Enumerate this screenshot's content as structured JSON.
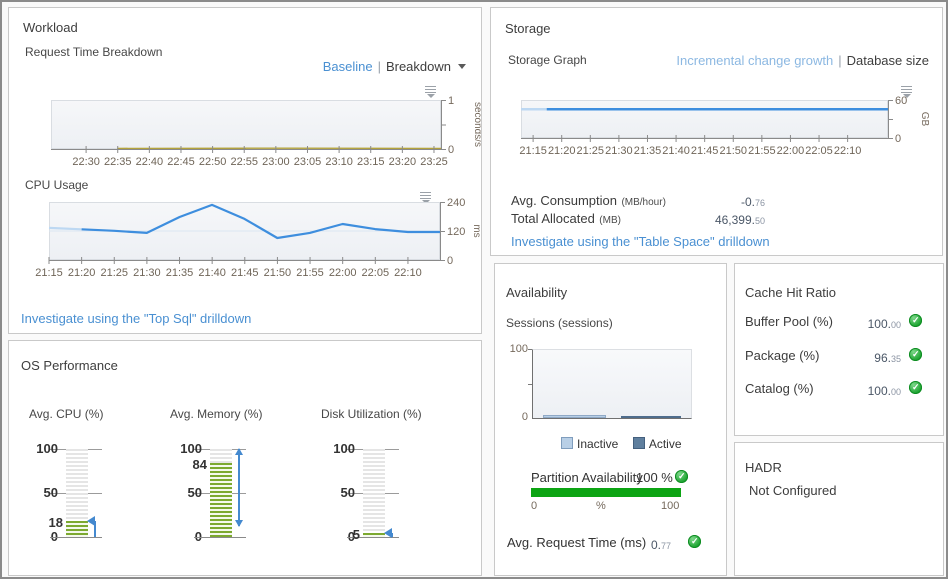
{
  "colors": {
    "line_blue": "#3e8ede",
    "line_light_blue": "#bdd8f2",
    "line_olive": "#b3a33c",
    "line_dark": "#8a8a7a",
    "gauge_green": "#7ca930",
    "marker_blue": "#4489cf",
    "partition_green": "#0ca413",
    "inactive_fill": "#b8cfe6",
    "inactive_border": "#8fa9c6",
    "active_fill": "#5f7f9e",
    "active_border": "#4f6d8c",
    "link_blue": "#4a90d2",
    "link_light_blue": "#8cb8e2"
  },
  "workload": {
    "title": "Workload",
    "request_chart": {
      "label": "Request Time Breakdown",
      "baseline_link": "Baseline",
      "separator": "|",
      "breakdown_label": "Breakdown",
      "type": "line",
      "x_labels": [
        "22:30",
        "22:35",
        "22:40",
        "22:45",
        "22:50",
        "22:55",
        "23:00",
        "23:05",
        "23:10",
        "23:15",
        "23:20",
        "23:25"
      ],
      "y_max": 1,
      "y_ticks": [
        {
          "pos": 0,
          "label": "1"
        },
        {
          "pos": 0.5,
          "label": ""
        },
        {
          "pos": 1,
          "label": "0"
        }
      ],
      "unit": "seconds/s",
      "series": [
        {
          "name": "request-time-dark",
          "color": "#8a8a7a",
          "width": 1,
          "points": [
            [
              0.17,
              0.006
            ],
            [
              0.5,
              0.006
            ]
          ]
        },
        {
          "name": "request-time",
          "color": "#b3a33c",
          "width": 1.4,
          "points": [
            [
              0.17,
              0.012
            ],
            [
              0.6,
              0.016
            ],
            [
              1,
              0.012
            ]
          ]
        }
      ]
    },
    "cpu_chart": {
      "label": "CPU Usage",
      "type": "line",
      "x_labels": [
        "21:15",
        "21:20",
        "21:25",
        "21:30",
        "21:35",
        "21:40",
        "21:45",
        "21:50",
        "21:55",
        "22:00",
        "22:05",
        "22:10"
      ],
      "y_max": 240,
      "y_ticks": [
        {
          "pos": 0,
          "label": "240"
        },
        {
          "pos": 0.5,
          "label": "120"
        },
        {
          "pos": 1,
          "label": "0"
        }
      ],
      "unit": "ms",
      "grid": [
        0.5
      ],
      "series": [
        {
          "name": "baseline",
          "color": "#bdd8f2",
          "width": 2.2,
          "points": [
            [
              0,
              133
            ],
            [
              0.0835,
              127
            ]
          ]
        },
        {
          "name": "cpu-ms",
          "color": "#3e8ede",
          "width": 2.2,
          "points": [
            [
              0.0835,
              127
            ],
            [
              0.167,
              121
            ],
            [
              0.25,
              112
            ],
            [
              0.334,
              178
            ],
            [
              0.417,
              228
            ],
            [
              0.5,
              170
            ],
            [
              0.584,
              91
            ],
            [
              0.667,
              112
            ],
            [
              0.751,
              149
            ],
            [
              0.834,
              128
            ],
            [
              0.918,
              116
            ],
            [
              1,
              116
            ]
          ]
        }
      ]
    },
    "drilldown": "Investigate using the \"Top Sql\" drilldown"
  },
  "storage": {
    "title": "Storage",
    "graph_label": "Storage Graph",
    "incremental_link": "Incremental change growth",
    "separator": "|",
    "database_link": "Database size",
    "chart": {
      "type": "line",
      "x_labels": [
        "21:15",
        "21:20",
        "21:25",
        "21:30",
        "21:35",
        "21:40",
        "21:45",
        "21:50",
        "21:55",
        "22:00",
        "22:05",
        "22:10"
      ],
      "y_max": 60,
      "y_ticks": [
        {
          "pos": 0,
          "label": "60"
        },
        {
          "pos": 0.5,
          "label": ""
        },
        {
          "pos": 1,
          "label": "0"
        }
      ],
      "unit": "GB",
      "series": [
        {
          "name": "baseline",
          "color": "#bdd8f2",
          "width": 2.5,
          "points": [
            [
              0,
              45.3
            ],
            [
              0.07,
              45.3
            ]
          ]
        },
        {
          "name": "database-size-gb",
          "color": "#3e8ede",
          "width": 2.5,
          "points": [
            [
              0.07,
              45.3
            ],
            [
              1,
              45.3
            ]
          ]
        }
      ]
    },
    "rows": [
      {
        "label": "Avg. Consumption",
        "unit": "(MB/hour)",
        "int": "-0.",
        "dec": "76"
      },
      {
        "label": "Total Allocated",
        "unit": "(MB)",
        "int": "46,399.",
        "dec": "50"
      }
    ],
    "drilldown": "Investigate using the \"Table Space\" drilldown"
  },
  "os_performance": {
    "title": "OS Performance",
    "gauges": [
      {
        "label": "Avg. CPU (%)",
        "ticks": [
          "100",
          "50",
          "0"
        ],
        "value": 18,
        "value_label": "18",
        "marker": {
          "type": "value-arrow",
          "from": 0,
          "to": 18
        }
      },
      {
        "label": "Avg. Memory (%)",
        "ticks": [
          "100",
          "50",
          "0"
        ],
        "value": 84,
        "value_label": "84",
        "marker": {
          "type": "range",
          "from": 13,
          "to": 100
        }
      },
      {
        "label": "Disk Utilization (%)",
        "ticks": [
          "100",
          "50",
          "0"
        ],
        "value": 5,
        "value_label": "5",
        "marker": {
          "type": "value-arrow",
          "from": 0,
          "to": 5
        }
      }
    ]
  },
  "availability": {
    "title": "Availability",
    "sessions_label": "Sessions (sessions)",
    "sessions_chart": {
      "type": "bar",
      "y_max": 100,
      "y_tick_labels": [
        "100",
        "0"
      ],
      "bars": [
        {
          "name": "inactive",
          "value": 4
        },
        {
          "name": "active",
          "value": 3
        }
      ]
    },
    "legend": [
      {
        "label": "Inactive"
      },
      {
        "label": "Active"
      }
    ],
    "partition": {
      "label": "Partition Availability",
      "value": "100 %",
      "bar_value": 100,
      "scale": [
        "0",
        "%",
        "100"
      ]
    },
    "request_time": {
      "label": "Avg. Request Time (ms)",
      "int": "0.",
      "dec": "77"
    }
  },
  "cache": {
    "title": "Cache Hit Ratio",
    "rows": [
      {
        "label": "Buffer Pool (%)",
        "int": "100.",
        "dec": "00"
      },
      {
        "label": "Package (%)",
        "int": "96.",
        "dec": "35"
      },
      {
        "label": "Catalog (%)",
        "int": "100.",
        "dec": "00"
      }
    ]
  },
  "hadr": {
    "title": "HADR",
    "status": "Not Configured"
  }
}
